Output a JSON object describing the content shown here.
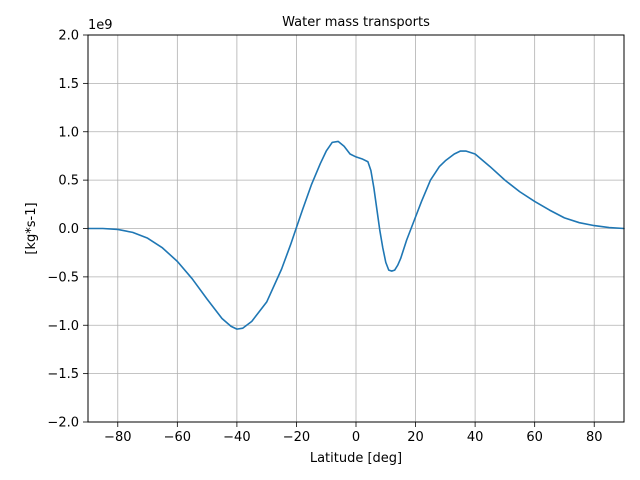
{
  "chart_data": {
    "type": "line",
    "title": "Water mass transports",
    "xlabel": "Latitude [deg]",
    "ylabel": "[kg*s-1]",
    "y_offset_label": "1e9",
    "xlim": [
      -90,
      90
    ],
    "ylim": [
      -2.0,
      2.0
    ],
    "x_ticks": [
      -80,
      -60,
      -40,
      -20,
      0,
      20,
      40,
      60,
      80
    ],
    "x_tick_labels": [
      "−80",
      "−60",
      "−40",
      "−20",
      "0",
      "20",
      "40",
      "60",
      "80"
    ],
    "y_ticks": [
      -2.0,
      -1.5,
      -1.0,
      -0.5,
      0.0,
      0.5,
      1.0,
      1.5,
      2.0
    ],
    "y_tick_labels": [
      "−2.0",
      "−1.5",
      "−1.0",
      "−0.5",
      "0.0",
      "0.5",
      "1.0",
      "1.5",
      "2.0"
    ],
    "y_scale_factor": 1000000000.0,
    "grid": true,
    "series": [
      {
        "color": "#1f77b4",
        "x": [
          -90,
          -85,
          -80,
          -75,
          -70,
          -65,
          -60,
          -55,
          -50,
          -45,
          -42,
          -40,
          -38,
          -35,
          -30,
          -25,
          -22,
          -20,
          -18,
          -15,
          -12,
          -10,
          -8,
          -6,
          -4,
          -2,
          0,
          2,
          4,
          5,
          6,
          7,
          8,
          9,
          10,
          11,
          12,
          13,
          14,
          15,
          17,
          20,
          22,
          25,
          28,
          30,
          33,
          35,
          37,
          40,
          45,
          50,
          55,
          60,
          65,
          70,
          75,
          80,
          85,
          90
        ],
        "y": [
          0.0,
          0.0,
          -0.01,
          -0.04,
          -0.1,
          -0.2,
          -0.34,
          -0.52,
          -0.73,
          -0.93,
          -1.01,
          -1.04,
          -1.03,
          -0.96,
          -0.76,
          -0.42,
          -0.17,
          0.01,
          0.19,
          0.45,
          0.67,
          0.8,
          0.89,
          0.9,
          0.85,
          0.77,
          0.74,
          0.72,
          0.69,
          0.6,
          0.42,
          0.2,
          -0.02,
          -0.2,
          -0.35,
          -0.43,
          -0.44,
          -0.43,
          -0.38,
          -0.31,
          -0.12,
          0.12,
          0.28,
          0.5,
          0.64,
          0.7,
          0.77,
          0.8,
          0.8,
          0.77,
          0.64,
          0.5,
          0.38,
          0.28,
          0.19,
          0.11,
          0.06,
          0.03,
          0.01,
          0.0
        ]
      }
    ]
  }
}
